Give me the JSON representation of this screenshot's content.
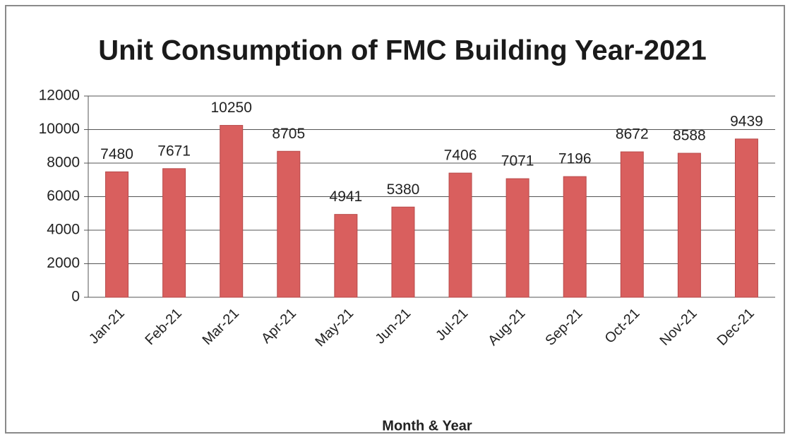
{
  "chart_data": {
    "type": "bar",
    "title": "Unit Consumption of FMC Building Year-2021",
    "x_label": "Month & Year",
    "categories": [
      "Jan-21",
      "Feb-21",
      "Mar-21",
      "Apr-21",
      "May-21",
      "Jun-21",
      "Jul-21",
      "Aug-21",
      "Sep-21",
      "Oct-21",
      "Nov-21",
      "Dec-21"
    ],
    "values": [
      7480,
      7671,
      10250,
      8705,
      4941,
      5380,
      7406,
      7071,
      7196,
      8672,
      8588,
      9439
    ],
    "color": "#d95f5e",
    "ylim": [
      0,
      12000
    ],
    "yticks": [
      0,
      2000,
      4000,
      6000,
      8000,
      10000,
      12000
    ],
    "grid": true
  }
}
